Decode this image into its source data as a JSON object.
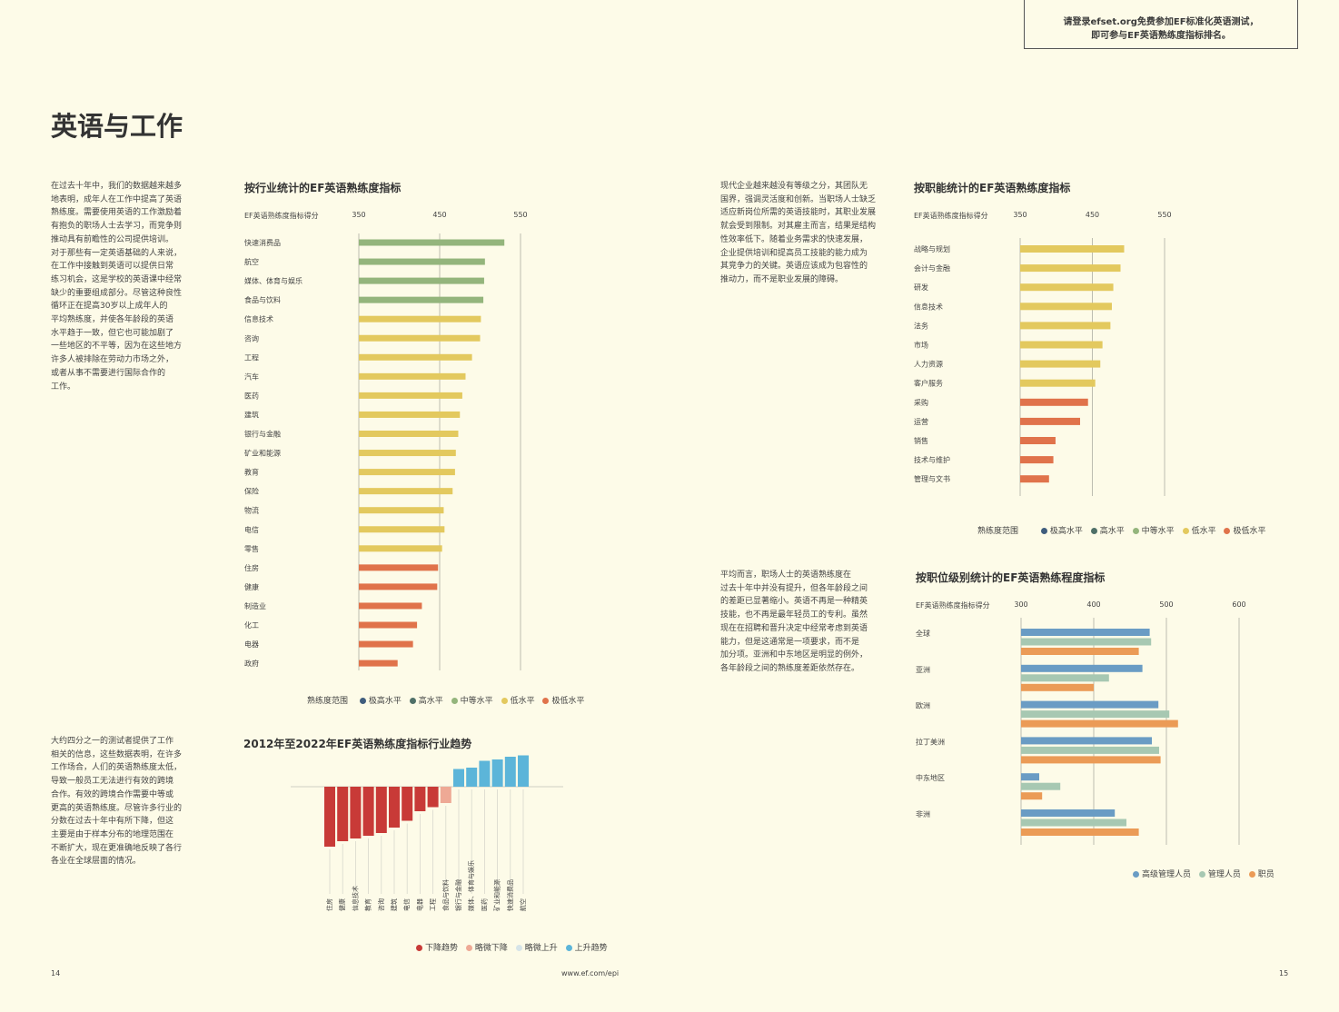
{
  "header_box": {
    "line1": "请登录efset.org免费参加EF标准化英语测试，",
    "line2": "即可参与EF英语熟练度指标排名。"
  },
  "page_title": "英语与工作",
  "text_blocks": {
    "intro": "在过去十年中，我们的数据越来越多\n地表明，成年人在工作中提高了英语\n熟练度。需要使用英语的工作激励着\n有抱负的职场人士去学习，而竞争则\n推动具有前瞻性的公司提供培训。\n对于那些有一定英语基础的人来说，\n在工作中接触到英语可以提供日常\n练习机会，这是学校的英语课中经常\n缺少的重要组成部分。尽管这种良性\n循环正在提高30岁以上成年人的\n平均熟练度，并使各年龄段的英语\n水平趋于一致，但它也可能加剧了\n一些地区的不平等，因为在这些地方\n许多人被排除在劳动力市场之外，\n或者从事不需要进行国际合作的\n工作。",
    "quarter": "大约四分之一的测试者提供了工作\n相关的信息，这些数据表明，在许多\n工作场合，人们的英语熟练度太低，\n导致一般员工无法进行有效的跨境\n合作。有效的跨境合作需要中等或\n更高的英语熟练度。尽管许多行业的\n分数在过去十年中有所下降，但这\n主要是由于样本分布的地理范围在\n不断扩大，现在更准确地反映了各行\n各业在全球层面的情况。",
    "modern": "现代企业越来越没有等级之分，其团队无\n国界，强调灵活度和创新。当职场人士缺乏\n适应新岗位所需的英语技能时，其职业发展\n就会受到限制。对其雇主而言，结果是结构\n性效率低下。随着业务需求的快速发展，\n企业提供培训和提高员工技能的能力成为\n其竞争力的关键。英语应该成为包容性的\n推动力，而不是职业发展的障碍。",
    "average": "平均而言，职场人士的英语熟练度在\n过去十年中并没有提升，但各年龄段之间\n的差距已显著缩小。英语不再是一种精英\n技能，也不再是最年轻员工的专利。虽然\n现在在招聘和晋升决定中经常考虑到英语\n能力，但是这通常是一项要求，而不是\n加分项。亚洲和中东地区是明显的例外，\n各年龄段之间的熟练度差距依然存在。"
  },
  "colors": {
    "very_high": "#3f5d7d",
    "high": "#4f7068",
    "moderate": "#94b57c",
    "low": "#e3c95e",
    "very_low": "#e0734b",
    "down": "#c83a37",
    "slight_down": "#eea995",
    "slight_up": "#d6e4e8",
    "up": "#5cb5d9",
    "exec": "#6a9cc4",
    "manager": "#a7c8b2",
    "staff": "#eb9b56"
  },
  "proficiency_legend": {
    "title": "熟练度范围",
    "items": [
      "极高水平",
      "高水平",
      "中等水平",
      "低水平",
      "极低水平"
    ]
  },
  "trend_legend": {
    "items": [
      "下降趋势",
      "略微下降",
      "略微上升",
      "上升趋势"
    ]
  },
  "level_legend": {
    "items": [
      "高级管理人员",
      "管理人员",
      "职员"
    ]
  },
  "footer": {
    "left_page": "14",
    "url": "www.ef.com/epi",
    "right_page": "15"
  },
  "chart_data": [
    {
      "type": "bar",
      "title": "按行业统计的EF英语熟练度指标",
      "xlabel": "EF英语熟练度指标得分",
      "xticks": [
        350,
        450,
        550
      ],
      "xlim": [
        350,
        550
      ],
      "categories": [
        "快速消费品",
        "航空",
        "媒体、体育与娱乐",
        "食品与饮料",
        "信息技术",
        "咨询",
        "工程",
        "汽车",
        "医药",
        "建筑",
        "银行与金融",
        "矿业和能源",
        "教育",
        "保险",
        "物流",
        "电信",
        "零售",
        "住房",
        "健康",
        "制造业",
        "化工",
        "电器",
        "政府"
      ],
      "values": [
        530,
        506,
        505,
        504,
        501,
        500,
        490,
        482,
        478,
        475,
        473,
        470,
        469,
        466,
        455,
        456,
        453,
        448,
        447,
        428,
        422,
        417,
        398
      ],
      "levels": [
        "moderate",
        "moderate",
        "moderate",
        "moderate",
        "low",
        "low",
        "low",
        "low",
        "low",
        "low",
        "low",
        "low",
        "low",
        "low",
        "low",
        "low",
        "low",
        "very_low",
        "very_low",
        "very_low",
        "very_low",
        "very_low",
        "very_low"
      ]
    },
    {
      "type": "bar",
      "title": "按职能统计的EF英语熟练度指标",
      "xlabel": "EF英语熟练度指标得分",
      "xticks": [
        350,
        450,
        550
      ],
      "xlim": [
        350,
        550
      ],
      "categories": [
        "战略与规划",
        "会计与金融",
        "研发",
        "信息技术",
        "法务",
        "市场",
        "人力资源",
        "客户服务",
        "采购",
        "运营",
        "销售",
        "技术与维护",
        "管理与文书"
      ],
      "values": [
        494,
        489,
        479,
        477,
        475,
        464,
        461,
        454,
        444,
        433,
        399,
        396,
        390
      ],
      "levels": [
        "low",
        "low",
        "low",
        "low",
        "low",
        "low",
        "low",
        "low",
        "very_low",
        "very_low",
        "very_low",
        "very_low",
        "very_low"
      ]
    },
    {
      "type": "bar",
      "title": "2012年至2022年EF英语熟练度指标行业趋势",
      "categories": [
        "住房",
        "健康",
        "信息技术",
        "教育",
        "咨询",
        "建筑",
        "电信",
        "电器",
        "工程",
        "食品与饮料",
        "银行与金融",
        "媒体、体育与娱乐",
        "医药",
        "矿业和能源",
        "快速消费品",
        "航空"
      ],
      "values": [
        -44,
        -40,
        -38,
        -36,
        -34,
        -30,
        -25,
        -18,
        -15,
        -12,
        13,
        14,
        19,
        20,
        22,
        23
      ],
      "trend": [
        "down",
        "down",
        "down",
        "down",
        "down",
        "down",
        "down",
        "down",
        "down",
        "slight_down",
        "up",
        "up",
        "up",
        "up",
        "up",
        "up"
      ]
    },
    {
      "type": "bar",
      "title": "按职位级别统计的EF英语熟练程度指标",
      "xlabel": "EF英语熟练度指标得分",
      "xticks": [
        300,
        400,
        500,
        600
      ],
      "xlim": [
        300,
        600
      ],
      "categories": [
        "全球",
        "亚洲",
        "欧洲",
        "拉丁美洲",
        "中东地区",
        "非洲"
      ],
      "series": [
        {
          "name": "高级管理人员",
          "values": [
            477,
            467,
            489,
            480,
            325,
            429
          ]
        },
        {
          "name": "管理人员",
          "values": [
            479,
            421,
            504,
            490,
            354,
            445
          ]
        },
        {
          "name": "职员",
          "values": [
            462,
            400,
            516,
            492,
            329,
            462
          ]
        }
      ]
    }
  ]
}
